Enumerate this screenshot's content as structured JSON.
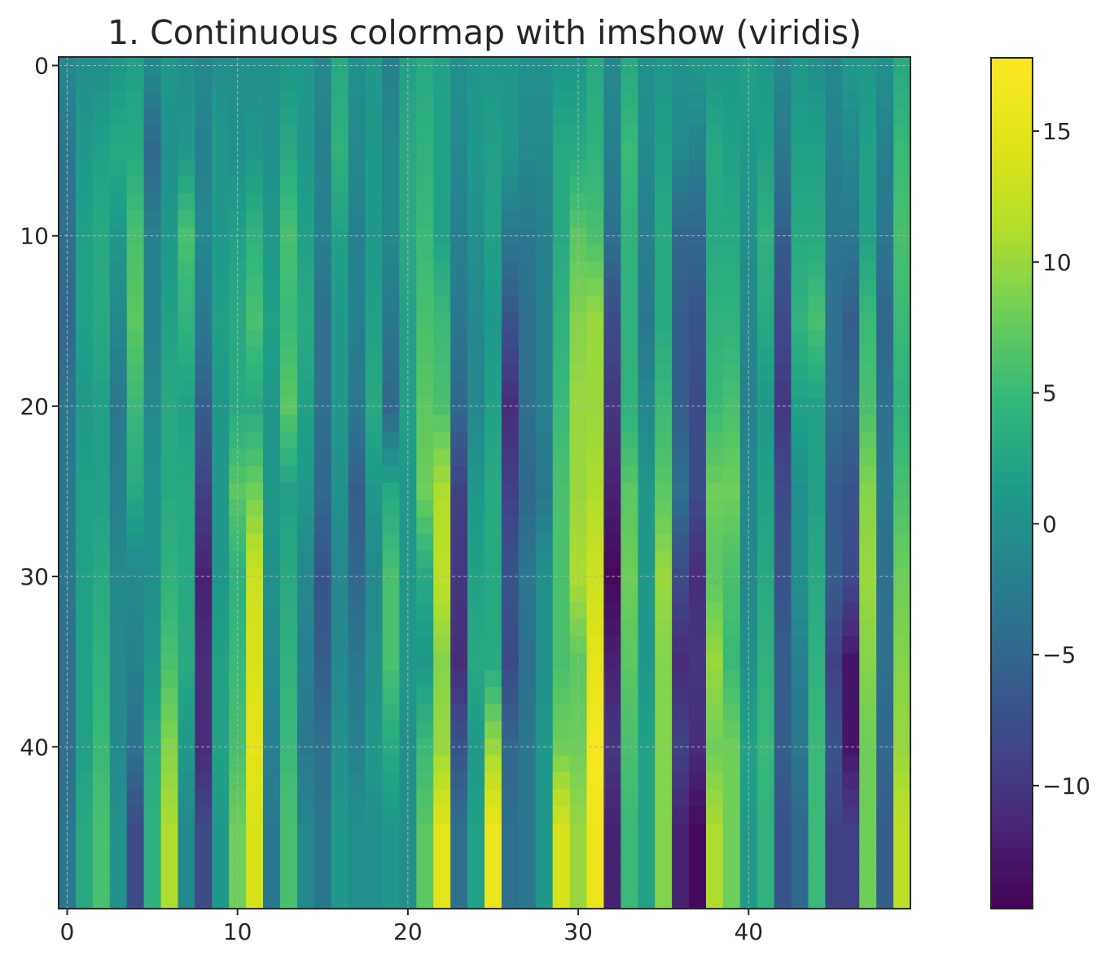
{
  "chart_data": {
    "type": "heatmap",
    "title": "1. Continuous colormap with imshow (viridis)",
    "colormap": "viridis",
    "xlim": [
      -0.5,
      49.5
    ],
    "ylim": [
      49.5,
      -0.5
    ],
    "x_ticks": [
      0,
      10,
      20,
      30,
      40
    ],
    "y_ticks": [
      0,
      10,
      20,
      30,
      40
    ],
    "grid": true,
    "colorbar": {
      "range": [
        -14.7,
        17.8
      ],
      "ticks": [
        15,
        10,
        5,
        0,
        -5,
        -10
      ],
      "tick_labels": [
        "15",
        "10",
        "5",
        "0",
        "−5",
        "−10"
      ],
      "placement": "right"
    },
    "sampled_rows": [
      0,
      5,
      10,
      15,
      20,
      25,
      30,
      35,
      40,
      45
    ],
    "column_profiles": [
      [
        -1,
        -3,
        -4,
        -5,
        -3,
        -3,
        -3,
        -4,
        -4,
        -3
      ],
      [
        0,
        1,
        2,
        2,
        1,
        2,
        2,
        2,
        2,
        3
      ],
      [
        0,
        2,
        3,
        3,
        2,
        2,
        3,
        4,
        5,
        6
      ],
      [
        1,
        3,
        1,
        -1,
        -3,
        -2,
        -1,
        -1,
        -1,
        0
      ],
      [
        2,
        3,
        6,
        7,
        5,
        3,
        -1,
        -2,
        -4,
        -8
      ],
      [
        -1,
        -5,
        -2,
        -2,
        -1,
        0,
        0,
        1,
        3,
        4
      ],
      [
        1,
        0,
        1,
        2,
        3,
        3,
        4,
        6,
        9,
        11
      ],
      [
        0,
        1,
        6,
        4,
        2,
        3,
        3,
        3,
        1,
        -1
      ],
      [
        -1,
        -2,
        -1,
        -3,
        -6,
        -9,
        -12,
        -11,
        -11,
        -8
      ],
      [
        0,
        1,
        1,
        2,
        1,
        1,
        1,
        2,
        2,
        1
      ],
      [
        0,
        0,
        2,
        3,
        3,
        7,
        4,
        5,
        6,
        8
      ],
      [
        0,
        1,
        4,
        6,
        3,
        8,
        13,
        14,
        15,
        14
      ],
      [
        0,
        0,
        1,
        2,
        1,
        1,
        0,
        -1,
        -2,
        -3
      ],
      [
        1,
        3,
        6,
        5,
        7,
        2,
        3,
        4,
        5,
        6
      ],
      [
        1,
        1,
        2,
        3,
        2,
        1,
        -1,
        -2,
        -3,
        -1
      ],
      [
        -1,
        -2,
        -2,
        -4,
        -4,
        -5,
        -7,
        -6,
        -4,
        -3
      ],
      [
        3,
        4,
        2,
        1,
        1,
        0,
        -1,
        -1,
        0,
        1
      ],
      [
        0,
        -1,
        -2,
        -2,
        -3,
        -6,
        -5,
        -3,
        -2,
        0
      ],
      [
        1,
        1,
        1,
        2,
        3,
        1,
        -1,
        0,
        1,
        0
      ],
      [
        -2,
        -1,
        -1,
        -3,
        -5,
        3,
        6,
        6,
        3,
        1
      ],
      [
        2,
        3,
        3,
        2,
        2,
        1,
        1,
        1,
        0,
        0
      ],
      [
        3,
        4,
        5,
        6,
        7,
        8,
        3,
        1,
        5,
        7
      ],
      [
        2,
        2,
        2,
        5,
        6,
        11,
        12,
        9,
        10,
        15
      ],
      [
        0,
        -1,
        -2,
        -3,
        -5,
        -9,
        -10,
        -11,
        -7,
        -4
      ],
      [
        1,
        1,
        0,
        -1,
        -1,
        1,
        2,
        3,
        1,
        2
      ],
      [
        1,
        2,
        2,
        1,
        2,
        3,
        3,
        3,
        10,
        16
      ],
      [
        1,
        1,
        -3,
        -7,
        -11,
        -9,
        -7,
        -8,
        -5,
        -4
      ],
      [
        0,
        -1,
        -3,
        -4,
        -4,
        -5,
        -3,
        -4,
        -3,
        -3
      ],
      [
        0,
        -1,
        -2,
        -2,
        -2,
        -3,
        0,
        0,
        1,
        1
      ],
      [
        1,
        3,
        3,
        4,
        5,
        6,
        6,
        6,
        8,
        14
      ],
      [
        1,
        3,
        7,
        9,
        10,
        10,
        11,
        7,
        8,
        10
      ],
      [
        3,
        4,
        6,
        10,
        10,
        11,
        13,
        15,
        17,
        16
      ],
      [
        -1,
        -2,
        -4,
        -8,
        -10,
        -12,
        -14,
        -12,
        -10,
        -12
      ],
      [
        3,
        5,
        4,
        4,
        4,
        7,
        8,
        7,
        6,
        5
      ],
      [
        0,
        -1,
        -2,
        -3,
        -1,
        1,
        1,
        1,
        2,
        2
      ],
      [
        1,
        2,
        3,
        3,
        5,
        7,
        10,
        9,
        9,
        9
      ],
      [
        0,
        -1,
        -5,
        -6,
        -6,
        -4,
        -8,
        -11,
        -9,
        -12
      ],
      [
        1,
        -2,
        -5,
        -7,
        -8,
        -8,
        -11,
        -10,
        -11,
        -14
      ],
      [
        1,
        3,
        3,
        4,
        5,
        8,
        7,
        10,
        8,
        11
      ],
      [
        1,
        2,
        3,
        4,
        6,
        8,
        6,
        5,
        8,
        8
      ],
      [
        2,
        1,
        0,
        -1,
        -2,
        -1,
        -1,
        0,
        2,
        1
      ],
      [
        1,
        2,
        4,
        3,
        1,
        2,
        3,
        4,
        5,
        4
      ],
      [
        -1,
        -3,
        -6,
        -8,
        -10,
        -8,
        -7,
        -6,
        -6,
        -7
      ],
      [
        1,
        2,
        3,
        4,
        2,
        0,
        0,
        -2,
        -3,
        -5
      ],
      [
        0,
        2,
        3,
        6,
        2,
        2,
        3,
        4,
        5,
        5
      ],
      [
        -1,
        -2,
        -3,
        -4,
        -4,
        -6,
        -6,
        -9,
        -7,
        -9
      ],
      [
        1,
        -1,
        -3,
        -6,
        -5,
        -7,
        -8,
        -13,
        -13,
        -9
      ],
      [
        1,
        2,
        2,
        5,
        6,
        9,
        10,
        9,
        8,
        8
      ],
      [
        0,
        -2,
        -3,
        -5,
        -4,
        -3,
        -4,
        -4,
        -5,
        -6
      ],
      [
        3,
        5,
        6,
        5,
        4,
        6,
        8,
        9,
        10,
        12
      ]
    ]
  }
}
